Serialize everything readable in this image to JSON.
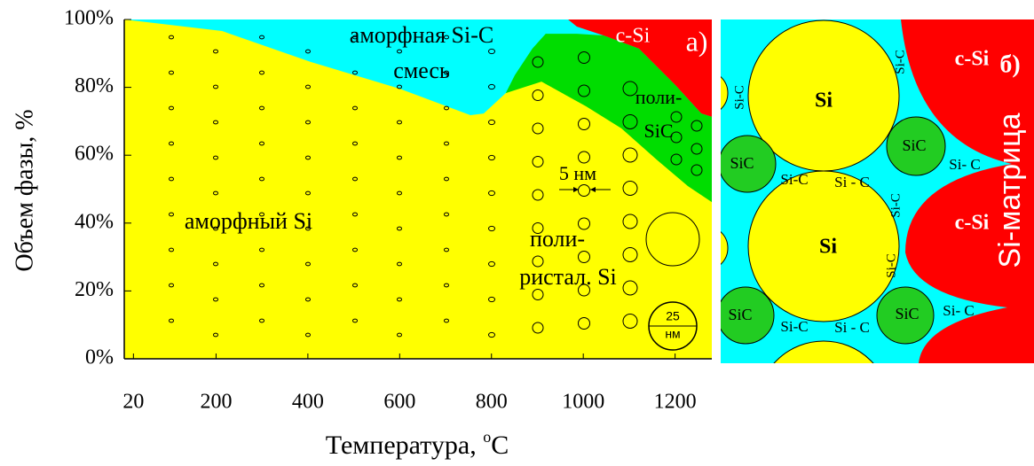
{
  "chart_data": {
    "type": "phase-area",
    "panel_label": "а)",
    "y_label": "Объем фазы, %",
    "x_label": [
      "Температура, ",
      "o",
      "C"
    ],
    "xlim": [
      0,
      1280
    ],
    "xticks": [
      20,
      200,
      400,
      600,
      800,
      1000,
      1200
    ],
    "ylim": [
      0,
      100
    ],
    "yticks": [
      {
        "value": 0,
        "label": "0%"
      },
      {
        "value": 20,
        "label": "20%"
      },
      {
        "value": 40,
        "label": "40%"
      },
      {
        "value": 60,
        "label": "60%"
      },
      {
        "value": 80,
        "label": "80%"
      },
      {
        "value": 100,
        "label": "100%"
      }
    ],
    "background_color": "#00ffff",
    "series": [
      {
        "color": "#ff0000",
        "fill": "above",
        "x": [
          967,
          986,
          1044,
          1121,
          1199,
          1257,
          1280
        ],
        "values": [
          100,
          97.9,
          95.3,
          91.4,
          80.9,
          72.3,
          71.3
        ]
      },
      {
        "color": "#00dd00",
        "fill": "below",
        "x": [
          831,
          851,
          889,
          918,
          986,
          1044,
          1121,
          1199,
          1257,
          1280
        ],
        "values": [
          78.3,
          83.6,
          91.4,
          95.8,
          95.8,
          95.3,
          91.4,
          80.9,
          72.3,
          71.3
        ]
      },
      {
        "color": "#ffff00",
        "fill": "below",
        "x": [
          0,
          213,
          406,
          600,
          754,
          783,
          831,
          909,
          1006,
          1083,
          1160,
          1228,
          1280
        ],
        "values": [
          100,
          96.6,
          87.5,
          79.6,
          71.8,
          72.3,
          78.3,
          81.7,
          74.4,
          67.9,
          58.7,
          50.9,
          46.2
        ]
      }
    ],
    "annotations": [
      "аморфная Si-C",
      "смесь",
      "c-Si",
      "поли-",
      "SiC",
      "аморфный  Si",
      "поли-",
      "ристал. Si",
      "5 нм",
      "25",
      "нм"
    ]
  },
  "schematic": {
    "panel_label": "б)",
    "labels": [
      "Si",
      "Si",
      "c-Si",
      "c-Si",
      "SiC",
      "SiC",
      "SiC",
      "SiC",
      "Si-C",
      "Si - C",
      "Si-C",
      "Si - C",
      "Si- C",
      "Si- C",
      "Si-C",
      "Si-C",
      "Si-C",
      "Si-C",
      "Si-матрица"
    ]
  }
}
